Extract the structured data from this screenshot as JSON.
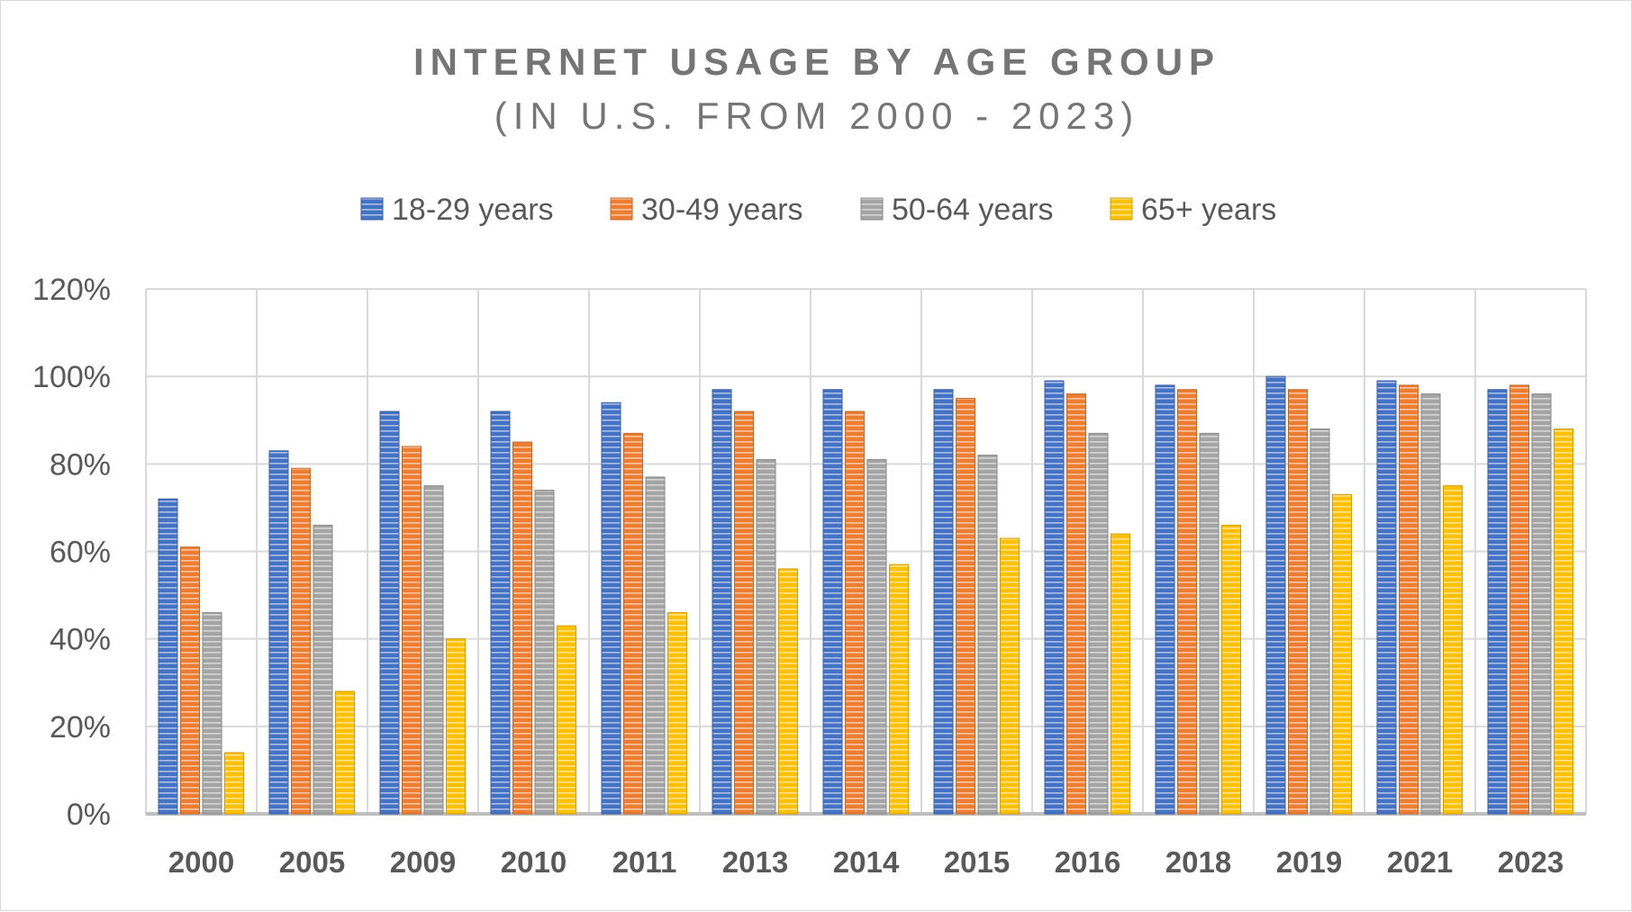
{
  "chart_data": {
    "type": "bar",
    "title": "INTERNET USAGE BY AGE GROUP",
    "subtitle": "(IN U.S. FROM 2000 - 2023)",
    "xlabel": "",
    "ylabel": "",
    "categories": [
      "2000",
      "2005",
      "2009",
      "2010",
      "2011",
      "2013",
      "2014",
      "2015",
      "2016",
      "2018",
      "2019",
      "2021",
      "2023"
    ],
    "series": [
      {
        "name": "18-29 years",
        "color": "#4472c4",
        "values": [
          72,
          83,
          92,
          92,
          94,
          97,
          97,
          97,
          99,
          98,
          100,
          99,
          97
        ]
      },
      {
        "name": "30-49 years",
        "color": "#ed7d31",
        "values": [
          61,
          79,
          84,
          85,
          87,
          92,
          92,
          95,
          96,
          97,
          97,
          98,
          98
        ]
      },
      {
        "name": "50-64 years",
        "color": "#a5a5a5",
        "values": [
          46,
          66,
          75,
          74,
          77,
          81,
          81,
          82,
          87,
          87,
          88,
          96,
          96
        ]
      },
      {
        "name": "65+ years",
        "color": "#ffc000",
        "values": [
          14,
          28,
          40,
          43,
          46,
          56,
          57,
          63,
          64,
          66,
          73,
          75,
          88
        ]
      }
    ],
    "ylim": [
      0,
      120
    ],
    "yticks": [
      0,
      20,
      40,
      60,
      80,
      100,
      120
    ],
    "ytick_labels": [
      "0%",
      "20%",
      "40%",
      "60%",
      "80%",
      "100%",
      "120%"
    ],
    "grid": true,
    "legend_position": "top-center"
  }
}
